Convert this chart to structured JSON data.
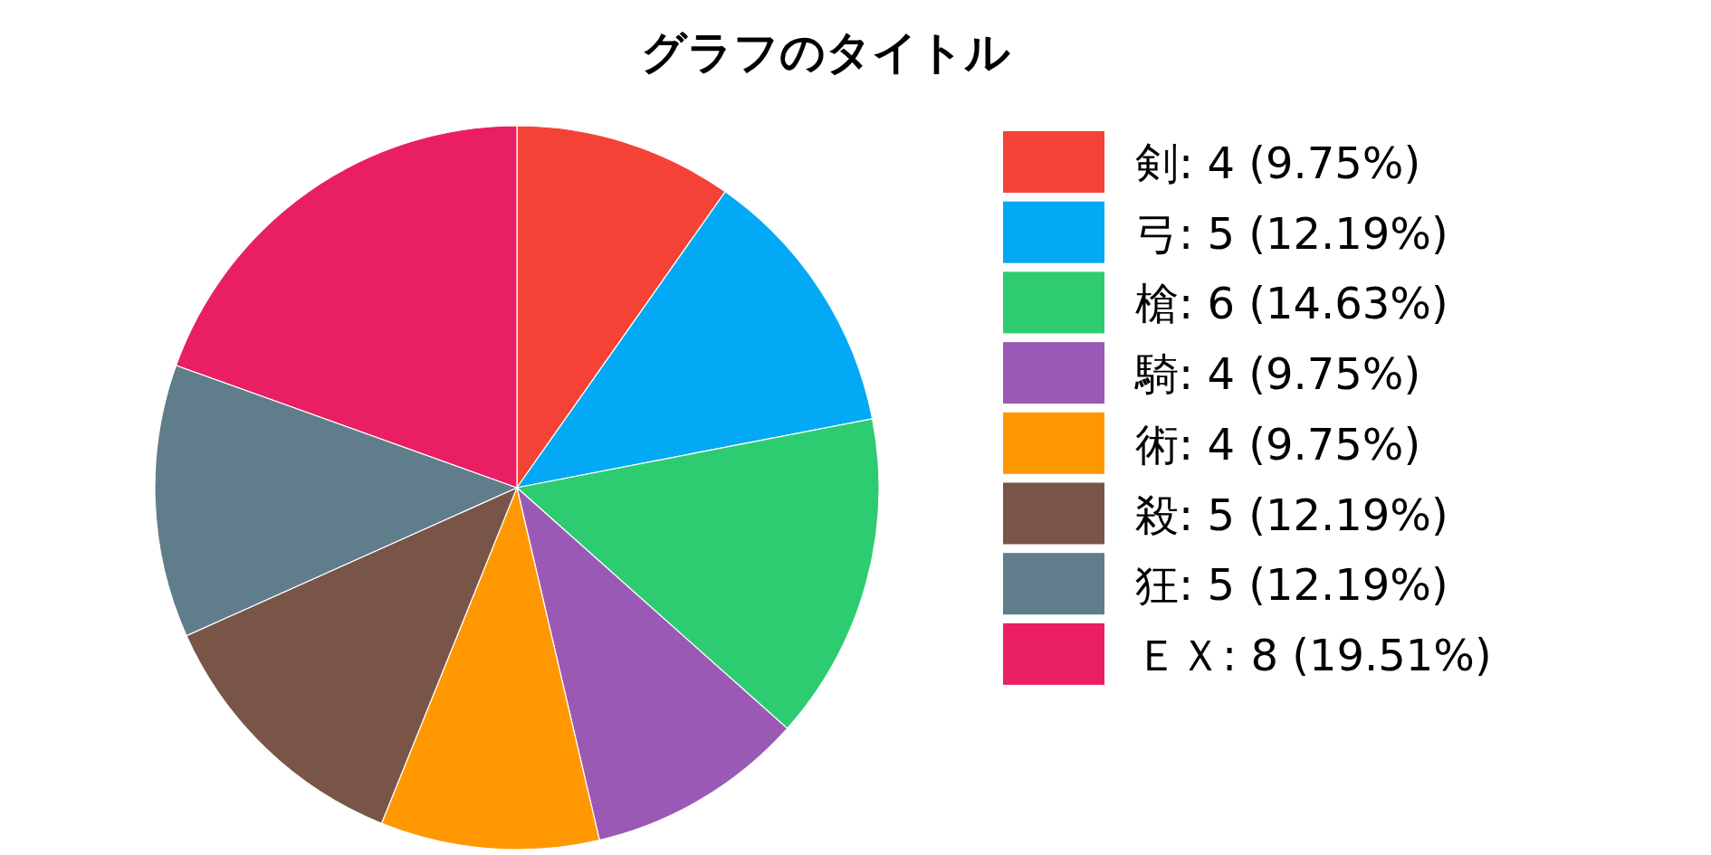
{
  "chart_data": {
    "type": "pie",
    "title": "グラフのタイトル",
    "categories": [
      "剣",
      "弓",
      "槍",
      "騎",
      "術",
      "殺",
      "狂",
      "ＥＸ"
    ],
    "values": [
      4,
      5,
      6,
      4,
      4,
      5,
      5,
      8
    ],
    "value_labels": [
      "4 (9.75%)",
      "5 (12.19%)",
      "6 (14.63%)",
      "4 (9.75%)",
      "4 (9.75%)",
      "5 (12.19%)",
      "5 (12.19%)",
      "8 (19.51%)"
    ],
    "colors": [
      "#f44336",
      "#03a9f4",
      "#2ecc71",
      "#9b59b6",
      "#ff9800",
      "#795548",
      "#607d8b",
      "#e91e63"
    ],
    "legend": "right"
  }
}
